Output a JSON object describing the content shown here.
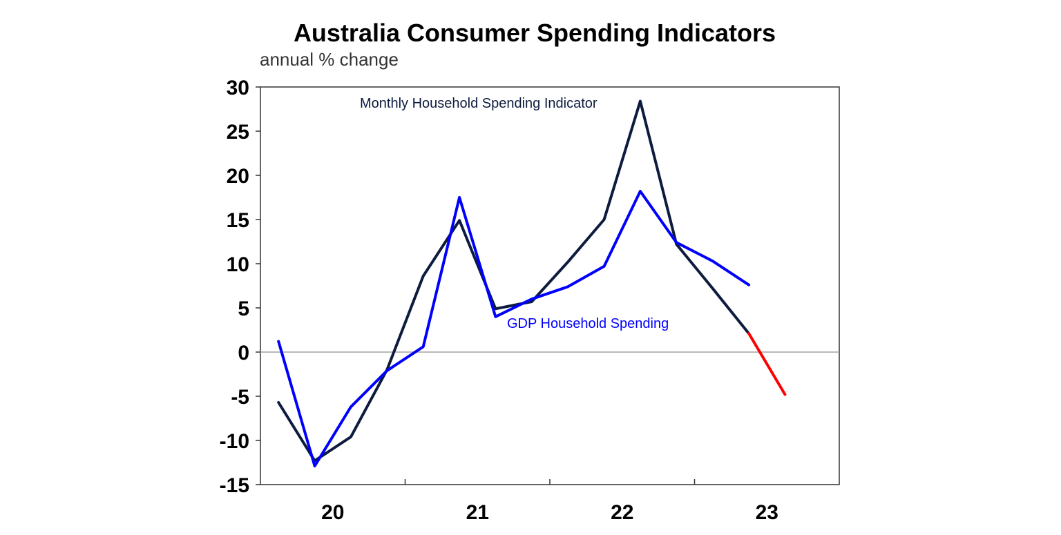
{
  "chart_data": {
    "type": "line",
    "title": "Australia Consumer Spending Indicators",
    "subtitle": "annual % change",
    "ylim": [
      -15,
      30
    ],
    "yticks": [
      30,
      25,
      20,
      15,
      10,
      5,
      0,
      -5,
      -10,
      -15
    ],
    "x_range": [
      2019.5,
      2023.5
    ],
    "xticks": [
      {
        "label": "20",
        "x": 2020
      },
      {
        "label": "21",
        "x": 2021
      },
      {
        "label": "22",
        "x": 2022
      },
      {
        "label": "23",
        "x": 2023
      }
    ],
    "zero_line": true,
    "grid": false,
    "series": [
      {
        "name": "Monthly Household Spending Indicator",
        "color": "#0d1b3e",
        "x": [
          2019.625,
          2019.875,
          2020.125,
          2020.375,
          2020.625,
          2020.875,
          2021.125,
          2021.375,
          2021.625,
          2021.875,
          2022.125,
          2022.375,
          2022.625,
          2022.875
        ],
        "values": [
          -5.7,
          -12.3,
          -9.6,
          -2.0,
          8.6,
          14.9,
          4.9,
          5.7,
          10.2,
          15.0,
          28.4,
          12.2,
          7.2,
          2.1
        ]
      },
      {
        "name": "GDP Household Spending",
        "color": "#0000ff",
        "x": [
          2019.625,
          2019.875,
          2020.125,
          2020.375,
          2020.625,
          2020.875,
          2021.125,
          2021.375,
          2021.625,
          2021.875,
          2022.125,
          2022.375,
          2022.625,
          2022.875
        ],
        "values": [
          1.2,
          -12.9,
          -6.2,
          -2.1,
          0.6,
          17.5,
          4.0,
          6.0,
          7.4,
          9.7,
          18.2,
          12.4,
          10.3,
          7.6
        ]
      },
      {
        "color": "#ff0000",
        "x": [
          2022.875,
          2023.125
        ],
        "values": [
          2.1,
          -4.8
        ]
      }
    ],
    "labels": [
      {
        "text": "Monthly Household Spending Indicator",
        "color": "#0d1b3e"
      },
      {
        "text": "GDP Household Spending",
        "color": "#0000ff"
      }
    ]
  }
}
